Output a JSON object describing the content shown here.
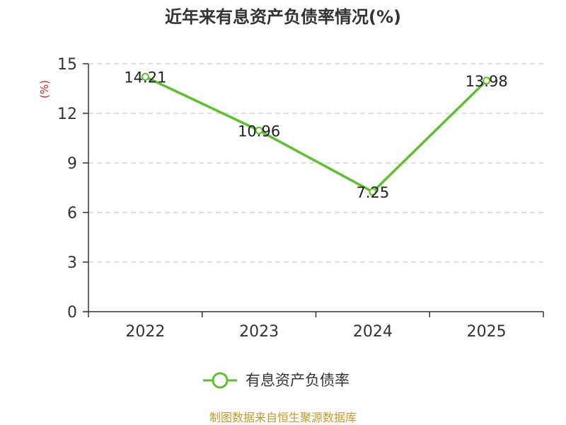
{
  "chart_data": {
    "type": "line",
    "title": "近年来有息资产负债率情况(%)",
    "ylabel": "(%)",
    "xlabel": "",
    "categories": [
      "2022",
      "2023",
      "2024",
      "2025"
    ],
    "series": [
      {
        "name": "有息资产负债率",
        "values": [
          14.21,
          10.96,
          7.25,
          13.98
        ],
        "color": "#5cc12a"
      }
    ],
    "data_labels": [
      "14.21",
      "10.96",
      "7.25",
      "13.98"
    ],
    "ylim": [
      0,
      15
    ],
    "yticks": [
      0,
      3,
      6,
      9,
      12,
      15
    ],
    "grid": true,
    "legend_position": "bottom"
  },
  "source_text": "制图数据来自恒生聚源数据库"
}
